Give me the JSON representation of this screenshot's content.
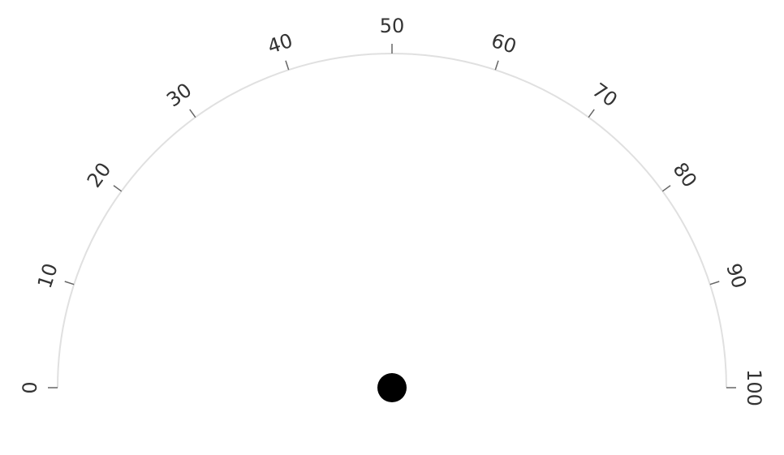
{
  "chart_data": {
    "type": "gauge",
    "min": 0,
    "max": 100,
    "ticks": [
      0,
      10,
      20,
      30,
      40,
      50,
      60,
      70,
      80,
      90,
      100
    ],
    "tick_labels": [
      "0",
      "10",
      "20",
      "30",
      "40",
      "50",
      "60",
      "70",
      "80",
      "90",
      "100"
    ],
    "value": null,
    "colors": {
      "arc": "#e0e0e0",
      "tick": "#666666",
      "label": "#333333",
      "pivot": "#000000"
    }
  }
}
